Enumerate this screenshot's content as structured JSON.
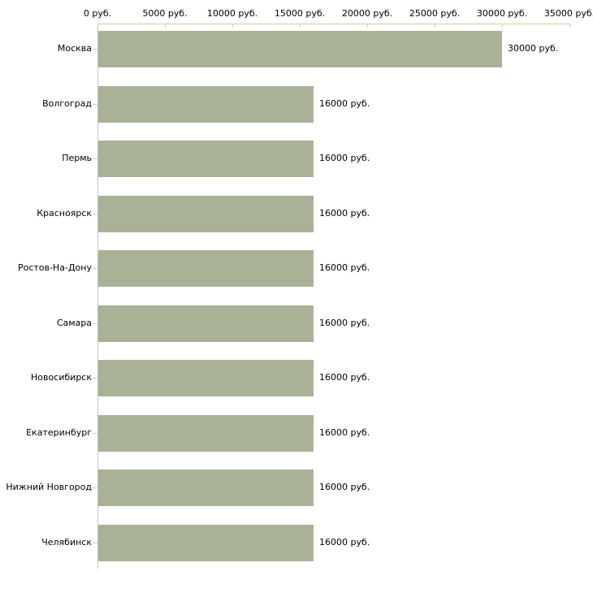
{
  "chart_data": {
    "type": "bar",
    "orientation": "horizontal",
    "title": "",
    "xlabel": "",
    "ylabel": "",
    "unit": "руб.",
    "xlim": [
      0,
      35000
    ],
    "grid": false,
    "legend": false,
    "categories": [
      "Москва",
      "Волгоград",
      "Пермь",
      "Красноярск",
      "Ростов-На-Дону",
      "Самара",
      "Новосибирск",
      "Екатеринбург",
      "Нижний Новгород",
      "Челябинск"
    ],
    "values": [
      30000,
      16000,
      16000,
      16000,
      16000,
      16000,
      16000,
      16000,
      16000,
      16000
    ],
    "value_labels": [
      "30000 руб.",
      "16000 руб.",
      "16000 руб.",
      "16000 руб.",
      "16000 руб.",
      "16000 руб.",
      "16000 руб.",
      "16000 руб.",
      "16000 руб.",
      "16000 руб."
    ],
    "x_ticks": [
      0,
      5000,
      10000,
      15000,
      20000,
      25000,
      30000,
      35000
    ],
    "x_tick_labels": [
      "0 руб.",
      "5000 руб.",
      "10000 руб.",
      "15000 руб.",
      "20000 руб.",
      "25000 руб.",
      "30000 руб.",
      "35000 руб."
    ],
    "colors": {
      "bar": "#a9b196",
      "x_axis": "#cfcfa6",
      "y_axis": "#c6c6c6",
      "text": "#000000",
      "background": "#ffffff"
    }
  }
}
